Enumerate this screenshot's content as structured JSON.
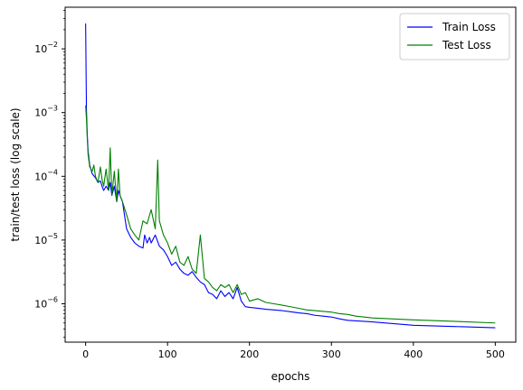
{
  "chart_data": {
    "type": "line",
    "title": "",
    "xlabel": "epochs",
    "ylabel": "train/test loss (log scale)",
    "y_scale": "log",
    "xlim": [
      -25,
      525
    ],
    "ylim": [
      2.5e-07,
      0.045
    ],
    "x_ticks": [
      0,
      100,
      200,
      300,
      400,
      500
    ],
    "y_ticks": [
      {
        "value": 1e-06,
        "mantissa": "10",
        "exp": "−6"
      },
      {
        "value": 1e-05,
        "mantissa": "10",
        "exp": "−5"
      },
      {
        "value": 0.0001,
        "mantissa": "10",
        "exp": "−4"
      },
      {
        "value": 0.001,
        "mantissa": "10",
        "exp": "−3"
      },
      {
        "value": 0.01,
        "mantissa": "10",
        "exp": "−2"
      }
    ],
    "grid": false,
    "legend_position": "top-right",
    "series": [
      {
        "name": "Train Loss",
        "color": "#0000ff",
        "x": [
          0,
          1,
          2,
          3,
          5,
          8,
          12,
          15,
          18,
          20,
          22,
          25,
          28,
          30,
          32,
          35,
          38,
          40,
          42,
          45,
          48,
          50,
          55,
          60,
          65,
          70,
          72,
          75,
          78,
          80,
          85,
          90,
          95,
          100,
          105,
          110,
          115,
          120,
          125,
          130,
          135,
          140,
          145,
          150,
          155,
          160,
          165,
          170,
          175,
          180,
          185,
          190,
          195,
          200,
          210,
          220,
          230,
          240,
          250,
          260,
          270,
          280,
          290,
          300,
          310,
          320,
          330,
          340,
          350,
          400,
          450,
          500
        ],
        "y": [
          0.025,
          0.0011,
          0.00045,
          0.00025,
          0.00015,
          0.00011,
          9.5e-05,
          8e-05,
          8.5e-05,
          7e-05,
          6e-05,
          7e-05,
          6e-05,
          8e-05,
          5e-05,
          7e-05,
          4e-05,
          6e-05,
          5e-05,
          4e-05,
          2.2e-05,
          1.5e-05,
          1.1e-05,
          9e-06,
          8e-06,
          7.5e-06,
          1.2e-05,
          9e-06,
          1.1e-05,
          9e-06,
          1.2e-05,
          8e-06,
          7e-06,
          5.5e-06,
          4e-06,
          4.5e-06,
          3.5e-06,
          3e-06,
          2.8e-06,
          3.2e-06,
          2.6e-06,
          2.2e-06,
          2e-06,
          1.5e-06,
          1.4e-06,
          1.2e-06,
          1.6e-06,
          1.3e-06,
          1.5e-06,
          1.2e-06,
          1.8e-06,
          1.1e-06,
          9e-07,
          8.8e-07,
          8.5e-07,
          8.2e-07,
          8e-07,
          7.8e-07,
          7.5e-07,
          7.2e-07,
          7e-07,
          6.6e-07,
          6.4e-07,
          6.2e-07,
          5.8e-07,
          5.5e-07,
          5.4e-07,
          5.3e-07,
          5.2e-07,
          4.6e-07,
          4.4e-07,
          4.2e-07
        ]
      },
      {
        "name": "Test Loss",
        "color": "#008000",
        "x": [
          0,
          1,
          2,
          3,
          5,
          8,
          10,
          12,
          15,
          18,
          20,
          22,
          25,
          28,
          30,
          32,
          35,
          38,
          40,
          42,
          45,
          48,
          50,
          55,
          60,
          65,
          70,
          75,
          80,
          85,
          88,
          90,
          95,
          100,
          105,
          110,
          115,
          120,
          125,
          130,
          135,
          140,
          145,
          150,
          155,
          160,
          165,
          170,
          175,
          180,
          185,
          190,
          195,
          200,
          210,
          220,
          230,
          240,
          250,
          260,
          270,
          280,
          290,
          300,
          310,
          320,
          330,
          340,
          350,
          400,
          450,
          500
        ],
        "y": [
          0.0013,
          0.0008,
          0.0004,
          0.00022,
          0.00014,
          0.00012,
          0.00015,
          0.0001,
          8e-05,
          0.00014,
          9e-05,
          7e-05,
          0.00013,
          6e-05,
          0.00028,
          5e-05,
          0.00012,
          4e-05,
          0.00013,
          5e-05,
          4e-05,
          3e-05,
          2.5e-05,
          1.5e-05,
          1.2e-05,
          1e-05,
          2e-05,
          1.8e-05,
          3e-05,
          1.5e-05,
          0.00018,
          2e-05,
          1.2e-05,
          9e-06,
          6e-06,
          8e-06,
          4.5e-06,
          4e-06,
          5.5e-06,
          3.5e-06,
          3e-06,
          1.2e-05,
          2.5e-06,
          2.2e-06,
          1.8e-06,
          1.6e-06,
          2e-06,
          1.8e-06,
          2e-06,
          1.5e-06,
          2e-06,
          1.4e-06,
          1.5e-06,
          1.1e-06,
          1.2e-06,
          1.05e-06,
          1e-06,
          9.5e-07,
          9e-07,
          8.5e-07,
          8e-07,
          7.8e-07,
          7.6e-07,
          7.4e-07,
          7e-07,
          6.8e-07,
          6.4e-07,
          6.2e-07,
          6e-07,
          5.6e-07,
          5.3e-07,
          5e-07
        ]
      }
    ]
  }
}
